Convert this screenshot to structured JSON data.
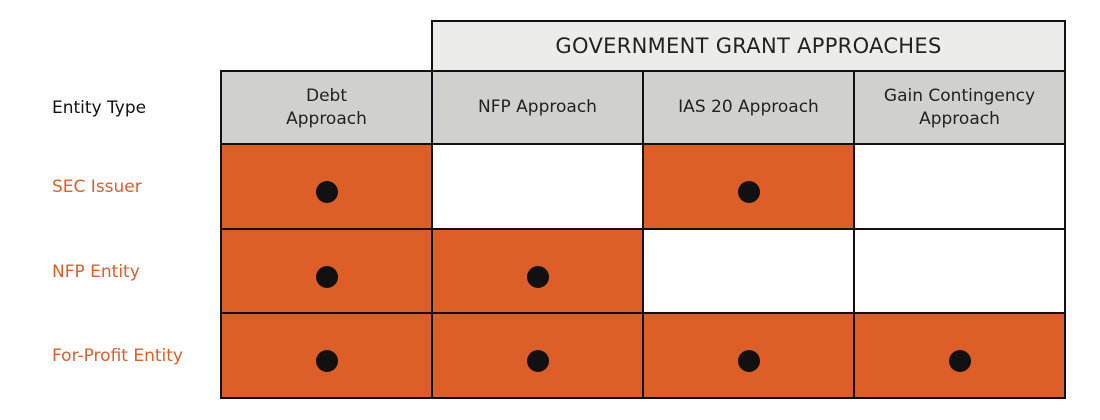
{
  "header": {
    "title": "GOVERNMENT GRANT APPROACHES",
    "row_label": "Entity Type"
  },
  "table": {
    "columns": [
      "Debt\nApproach",
      "NFP Approach",
      "IAS 20 Approach",
      "Gain Contingency\nApproach"
    ],
    "rows": [
      {
        "label": "SEC Issuer",
        "cells": [
          true,
          false,
          true,
          false
        ]
      },
      {
        "label": "NFP Entity",
        "cells": [
          true,
          true,
          false,
          false
        ]
      },
      {
        "label": "For-Profit Entity",
        "cells": [
          true,
          true,
          true,
          true
        ]
      }
    ]
  }
}
